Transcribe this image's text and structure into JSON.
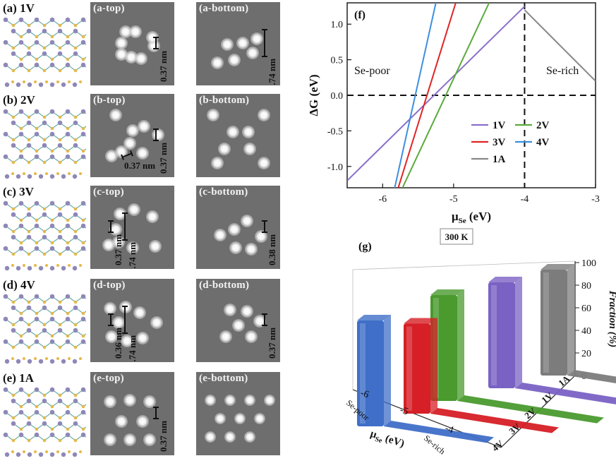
{
  "rows": [
    {
      "label": "(a) 1V",
      "top_title": "(a-top)",
      "bottom_title": "(a-bottom)",
      "top_dims": [
        "0.37 nm"
      ],
      "bottom_dims": [
        "0.74 nm"
      ]
    },
    {
      "label": "(b) 2V",
      "top_title": "(b-top)",
      "bottom_title": "(b-bottom)",
      "top_dims": [
        "0.37 nm",
        "0.37 nm"
      ],
      "bottom_dims": []
    },
    {
      "label": "(c) 3V",
      "top_title": "(c-top)",
      "bottom_title": "(c-bottom)",
      "top_dims": [
        "0.37 nm",
        "0.74 nm"
      ],
      "bottom_dims": [
        "0.38 nm"
      ]
    },
    {
      "label": "(d) 4V",
      "top_title": "(d-top)",
      "bottom_title": "(d-bottom)",
      "top_dims": [
        "0.36 nm",
        "0.74 nm"
      ],
      "bottom_dims": [
        "0.37 nm"
      ]
    },
    {
      "label": "(e) 1A",
      "top_title": "(e-top)",
      "bottom_title": "(e-bottom)",
      "top_dims": [
        "0.37 nm"
      ],
      "bottom_dims": []
    }
  ],
  "colors": {
    "atom_se": "#e6b84a",
    "atom_w": "#8e88b8",
    "bond": "#6fb0a8",
    "stm_bg": "#6e6e6e"
  },
  "chart_data": [
    {
      "type": "line",
      "panel_label": "(f)",
      "xlabel": "μSe (eV)",
      "ylabel": "ΔG (eV)",
      "xlim": [
        -6.5,
        -3
      ],
      "ylim": [
        -1.3,
        1.3
      ],
      "x_ticks": [
        "-6",
        "-5",
        "-4",
        "-3"
      ],
      "y_ticks": [
        "-1.0",
        "-0.5",
        "0.0",
        "0.5",
        "1.0"
      ],
      "annotations": [
        "Se-poor",
        "Se-rich"
      ],
      "reference_lines": {
        "y": 0.0,
        "x": -4.0
      },
      "series": [
        {
          "name": "1V",
          "color": "#8a6fc9",
          "x": [
            -6.5,
            -4.0
          ],
          "y": [
            -1.2,
            1.25
          ]
        },
        {
          "name": "2V",
          "color": "#5aaa3c",
          "x": [
            -5.72,
            -4.5
          ],
          "y": [
            -1.3,
            1.3
          ]
        },
        {
          "name": "3V",
          "color": "#e02424",
          "x": [
            -5.78,
            -4.97
          ],
          "y": [
            -1.3,
            1.3
          ]
        },
        {
          "name": "4V",
          "color": "#3d8fe0",
          "x": [
            -5.83,
            -5.25
          ],
          "y": [
            -1.3,
            1.3
          ]
        },
        {
          "name": "1A",
          "color": "#888888",
          "x": [
            -4.0,
            -3.0
          ],
          "y": [
            1.2,
            0.2
          ]
        }
      ]
    },
    {
      "type": "area",
      "panel_label": "(g)",
      "temperature": "300 K",
      "xlabel": "μSe (eV)",
      "zlabel": "Fraction (%)",
      "x_ticks": [
        "-6",
        "-5",
        "-4"
      ],
      "x_annotations": [
        "Se-poor",
        "Se-rich"
      ],
      "z_ticks": [
        "0",
        "20",
        "40",
        "60",
        "80",
        "100"
      ],
      "categories": [
        "4V",
        "3V",
        "2V",
        "1V",
        "1A"
      ],
      "series": [
        {
          "name": "4V",
          "color": "#3f6fc8",
          "peak": 100
        },
        {
          "name": "3V",
          "color": "#d61f26",
          "peak": 85
        },
        {
          "name": "2V",
          "color": "#4a9a2e",
          "peak": 100
        },
        {
          "name": "1V",
          "color": "#7a62c4",
          "peak": 100
        },
        {
          "name": "1A",
          "color": "#7c7c7c",
          "peak": 100
        }
      ]
    }
  ]
}
